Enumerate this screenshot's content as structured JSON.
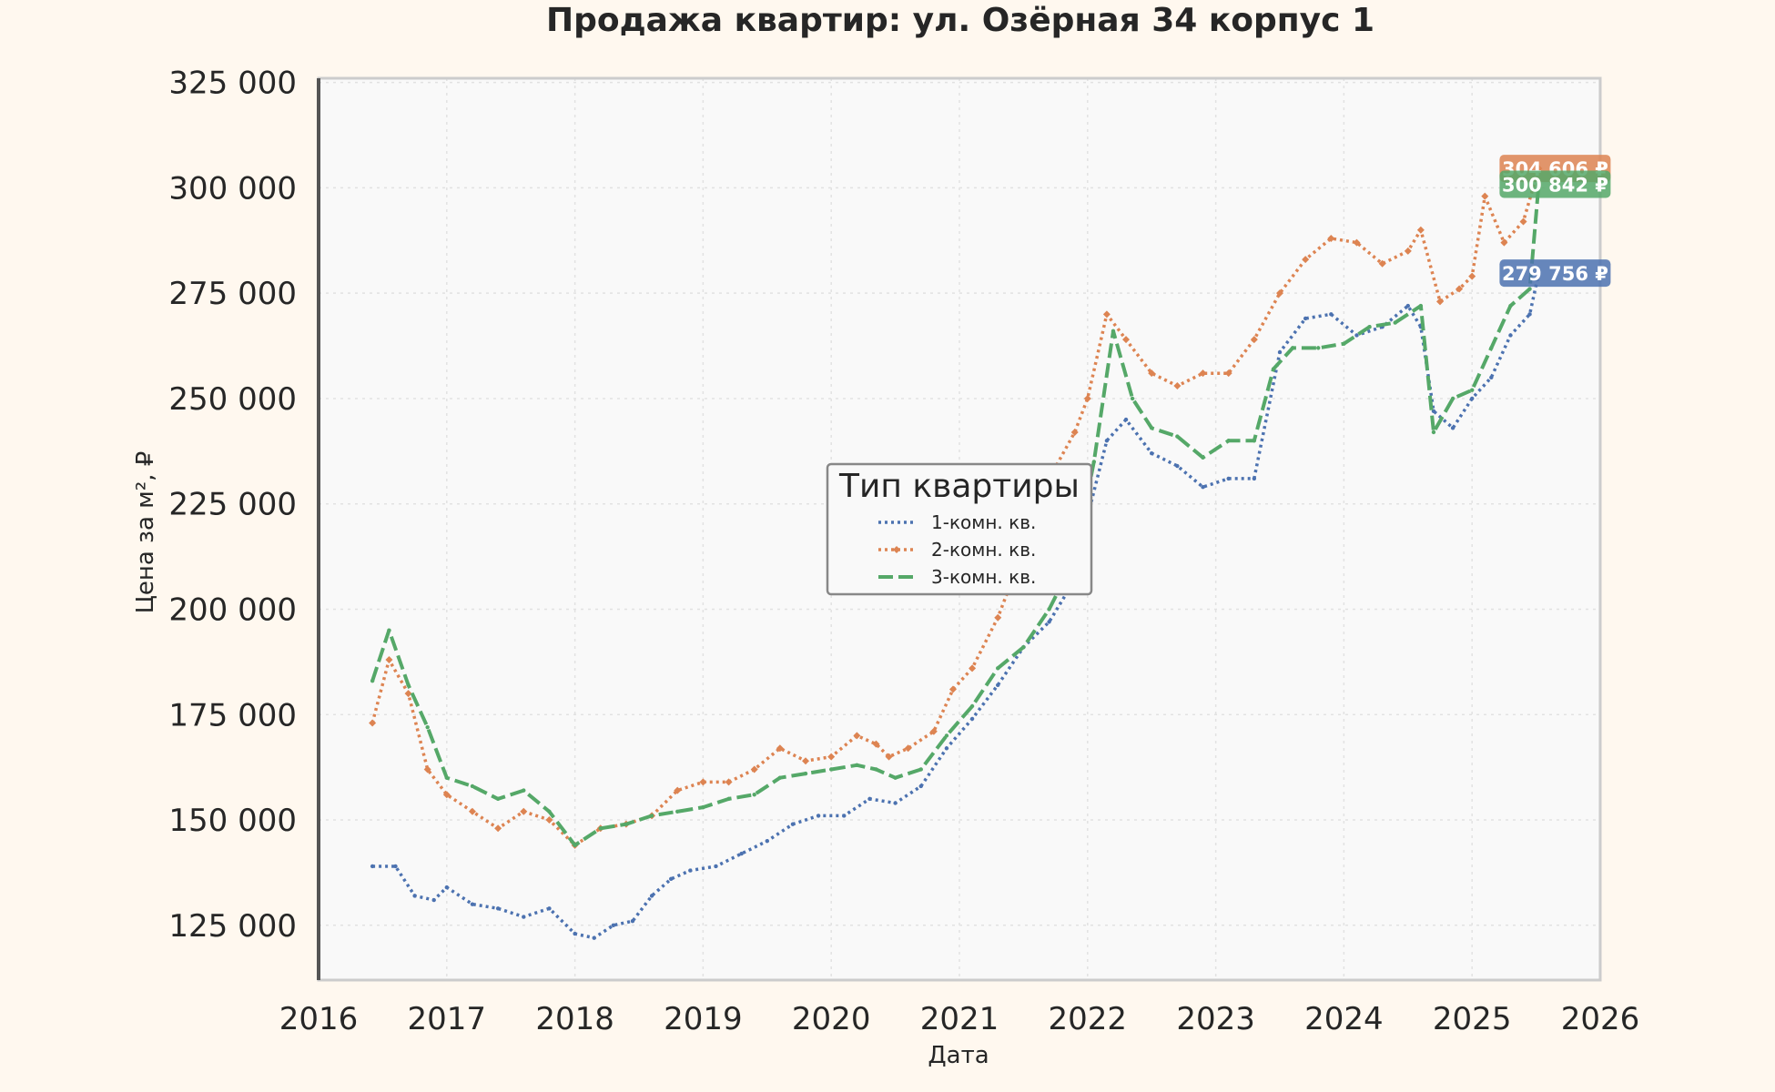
{
  "chart_data": {
    "type": "line",
    "title": "Продажа квартир: ул. Озёрная 34 корпус 1",
    "xlabel": "Дата",
    "ylabel": "Цена за м², ₽",
    "xlim": [
      2016.0,
      2026.0
    ],
    "ylim": [
      112000,
      326000
    ],
    "x_ticks": [
      "2016",
      "2017",
      "2018",
      "2019",
      "2020",
      "2021",
      "2022",
      "2023",
      "2024",
      "2025",
      "2026"
    ],
    "y_ticks": [
      "125 000",
      "150 000",
      "175 000",
      "200 000",
      "225 000",
      "250 000",
      "275 000",
      "300 000",
      "325 000"
    ],
    "grid": true,
    "legend": {
      "title": "Тип квартиры",
      "placement": "center"
    },
    "series": [
      {
        "name": "1-комн. кв.",
        "color": "#4c72b0",
        "style": "dotted",
        "end_label": "279 756 ₽",
        "x": [
          2016.42,
          2016.6,
          2016.75,
          2016.9,
          2017.0,
          2017.2,
          2017.4,
          2017.6,
          2017.8,
          2018.0,
          2018.15,
          2018.3,
          2018.45,
          2018.6,
          2018.75,
          2018.9,
          2019.1,
          2019.3,
          2019.5,
          2019.7,
          2019.9,
          2020.1,
          2020.3,
          2020.5,
          2020.7,
          2020.9,
          2021.1,
          2021.3,
          2021.5,
          2021.7,
          2021.9,
          2022.0,
          2022.15,
          2022.3,
          2022.5,
          2022.7,
          2022.9,
          2023.1,
          2023.3,
          2023.5,
          2023.7,
          2023.9,
          2024.1,
          2024.3,
          2024.5,
          2024.6,
          2024.7,
          2024.85,
          2025.0,
          2025.15,
          2025.3,
          2025.45,
          2025.52
        ],
        "values": [
          139000,
          139000,
          132000,
          131000,
          134000,
          130000,
          129000,
          127000,
          129000,
          123000,
          122000,
          125000,
          126000,
          132000,
          136000,
          138000,
          139000,
          142000,
          145000,
          149000,
          151000,
          151000,
          155000,
          154000,
          158000,
          167000,
          174000,
          182000,
          191000,
          197000,
          207000,
          222000,
          240000,
          245000,
          237000,
          234000,
          229000,
          231000,
          231000,
          261000,
          269000,
          270000,
          265000,
          267000,
          272000,
          267000,
          247000,
          243000,
          250000,
          255000,
          265000,
          270000,
          279756
        ]
      },
      {
        "name": "2-комн. кв.",
        "color": "#dd8452",
        "style": "dotted-diamond",
        "end_label": "304 606 ₽",
        "x": [
          2016.42,
          2016.55,
          2016.7,
          2016.85,
          2017.0,
          2017.2,
          2017.4,
          2017.6,
          2017.8,
          2018.0,
          2018.2,
          2018.4,
          2018.6,
          2018.8,
          2019.0,
          2019.2,
          2019.4,
          2019.6,
          2019.8,
          2020.0,
          2020.2,
          2020.35,
          2020.45,
          2020.6,
          2020.8,
          2020.95,
          2021.1,
          2021.3,
          2021.5,
          2021.7,
          2021.9,
          2022.0,
          2022.15,
          2022.3,
          2022.5,
          2022.7,
          2022.9,
          2023.1,
          2023.3,
          2023.5,
          2023.7,
          2023.9,
          2024.1,
          2024.3,
          2024.5,
          2024.6,
          2024.75,
          2024.9,
          2025.0,
          2025.1,
          2025.25,
          2025.4,
          2025.52
        ],
        "values": [
          173000,
          188000,
          180000,
          162000,
          156000,
          152000,
          148000,
          152000,
          150000,
          144000,
          148000,
          149000,
          151000,
          157000,
          159000,
          159000,
          162000,
          167000,
          164000,
          165000,
          170000,
          168000,
          165000,
          167000,
          171000,
          181000,
          186000,
          198000,
          214000,
          231000,
          242000,
          250000,
          270000,
          264000,
          256000,
          253000,
          256000,
          256000,
          264000,
          275000,
          283000,
          288000,
          287000,
          282000,
          285000,
          290000,
          273000,
          276000,
          279000,
          298000,
          287000,
          292000,
          304606
        ]
      },
      {
        "name": "3-комн. кв.",
        "color": "#55a868",
        "style": "dashed",
        "end_label": "300 842 ₽",
        "x": [
          2016.42,
          2016.55,
          2016.7,
          2016.85,
          2017.0,
          2017.2,
          2017.4,
          2017.6,
          2017.8,
          2018.0,
          2018.2,
          2018.4,
          2018.6,
          2018.8,
          2019.0,
          2019.2,
          2019.4,
          2019.6,
          2019.8,
          2020.0,
          2020.2,
          2020.35,
          2020.5,
          2020.7,
          2020.9,
          2021.1,
          2021.3,
          2021.5,
          2021.7,
          2021.9,
          2022.05,
          2022.2,
          2022.35,
          2022.5,
          2022.7,
          2022.9,
          2023.1,
          2023.3,
          2023.45,
          2023.6,
          2023.8,
          2024.0,
          2024.2,
          2024.4,
          2024.6,
          2024.7,
          2024.85,
          2025.0,
          2025.15,
          2025.3,
          2025.45,
          2025.52
        ],
        "values": [
          183000,
          195000,
          182000,
          172000,
          160000,
          158000,
          155000,
          157000,
          152000,
          144000,
          148000,
          149000,
          151000,
          152000,
          153000,
          155000,
          156000,
          160000,
          161000,
          162000,
          163000,
          162000,
          160000,
          162000,
          170000,
          177000,
          186000,
          191000,
          200000,
          212000,
          235000,
          266000,
          250000,
          243000,
          241000,
          236000,
          240000,
          240000,
          257000,
          262000,
          262000,
          263000,
          267000,
          268000,
          272000,
          242000,
          250000,
          252000,
          262000,
          272000,
          276000,
          300842
        ]
      }
    ]
  }
}
